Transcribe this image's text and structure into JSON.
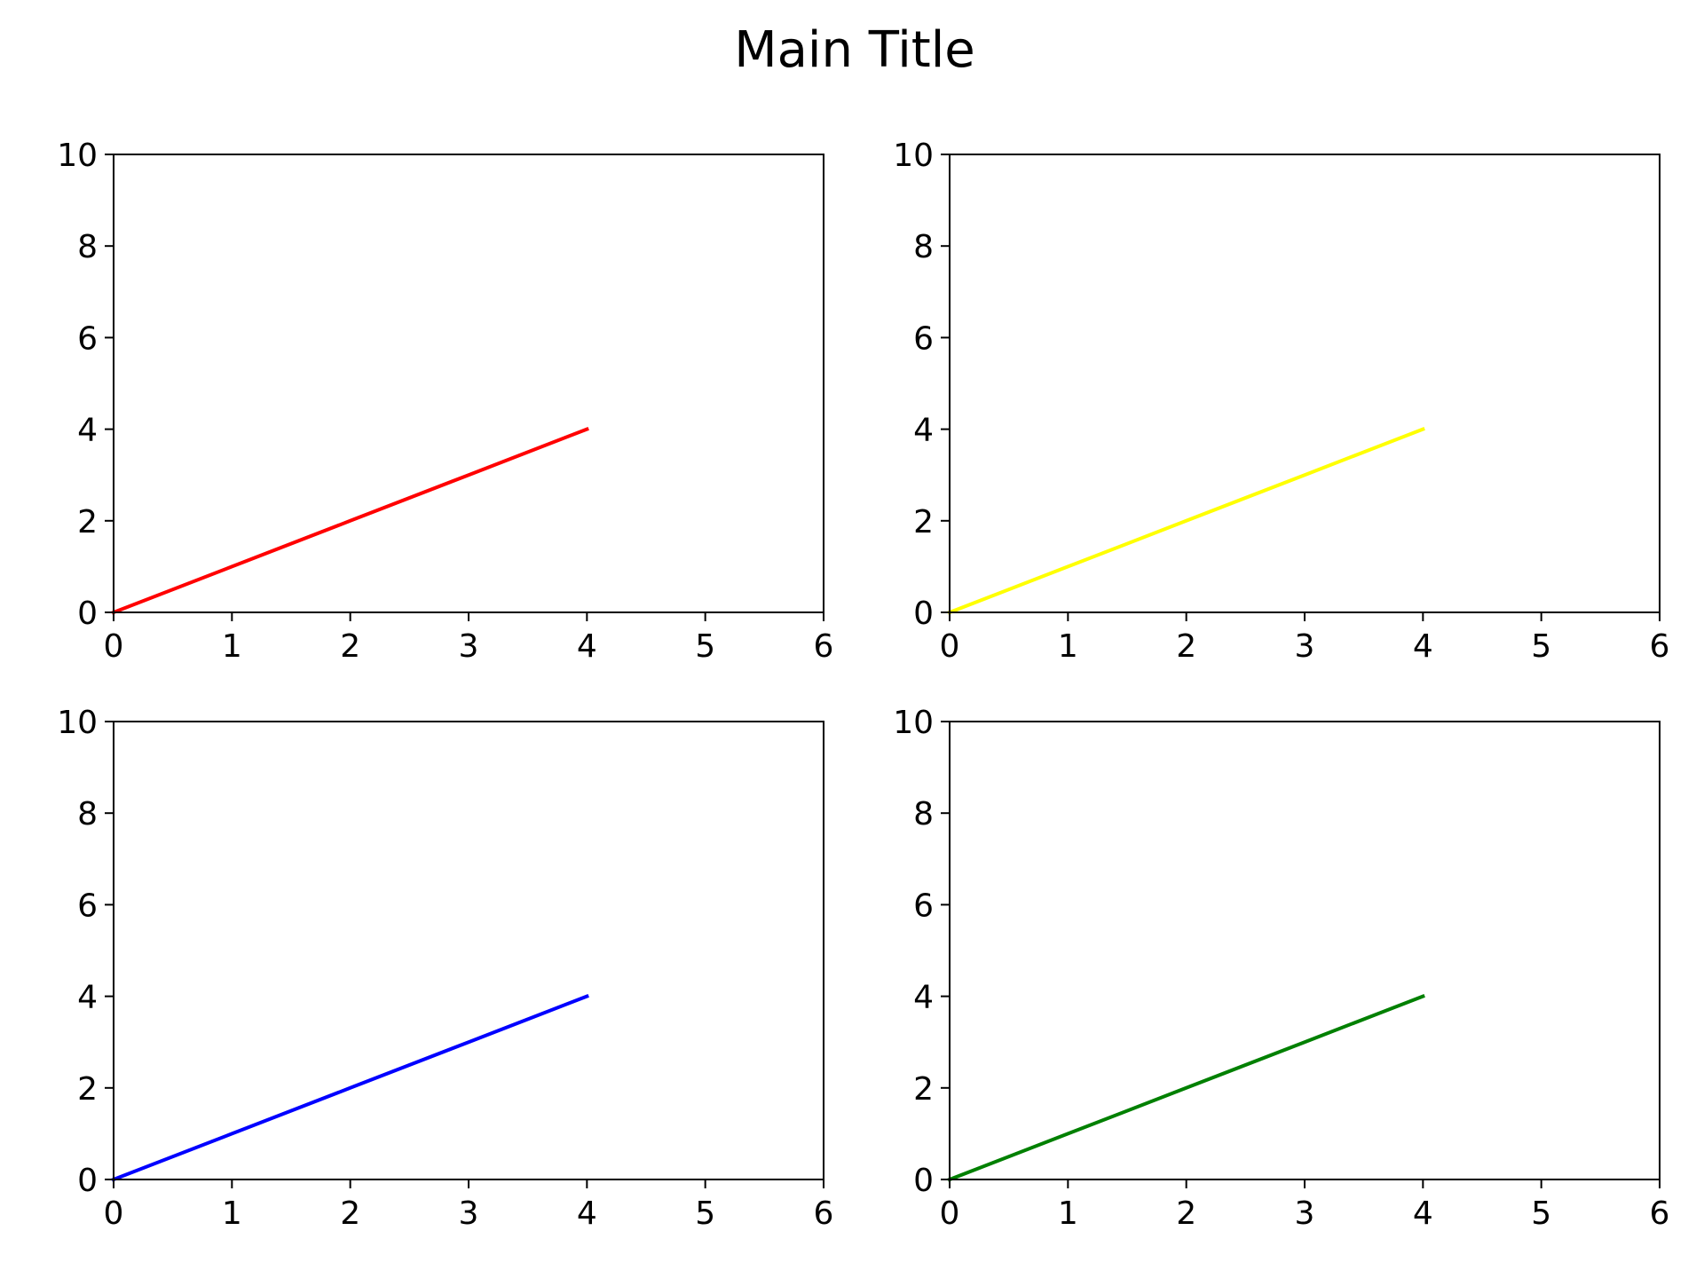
{
  "figure": {
    "suptitle": "Main Title"
  },
  "chart_data": [
    {
      "type": "line",
      "title": "",
      "xlabel": "",
      "ylabel": "",
      "xlim": [
        0,
        6
      ],
      "ylim": [
        0,
        10
      ],
      "xticks": [
        0,
        1,
        2,
        3,
        4,
        5,
        6
      ],
      "yticks": [
        0,
        2,
        4,
        6,
        8,
        10
      ],
      "grid": false,
      "series": [
        {
          "x": [
            0,
            1,
            2,
            3,
            4
          ],
          "y": [
            0,
            1,
            2,
            3,
            4
          ],
          "color": "#ff0000"
        }
      ]
    },
    {
      "type": "line",
      "title": "",
      "xlabel": "",
      "ylabel": "",
      "xlim": [
        0,
        6
      ],
      "ylim": [
        0,
        10
      ],
      "xticks": [
        0,
        1,
        2,
        3,
        4,
        5,
        6
      ],
      "yticks": [
        0,
        2,
        4,
        6,
        8,
        10
      ],
      "grid": false,
      "series": [
        {
          "x": [
            0,
            1,
            2,
            3,
            4
          ],
          "y": [
            0,
            1,
            2,
            3,
            4
          ],
          "color": "#ffff00"
        }
      ]
    },
    {
      "type": "line",
      "title": "",
      "xlabel": "",
      "ylabel": "",
      "xlim": [
        0,
        6
      ],
      "ylim": [
        0,
        10
      ],
      "xticks": [
        0,
        1,
        2,
        3,
        4,
        5,
        6
      ],
      "yticks": [
        0,
        2,
        4,
        6,
        8,
        10
      ],
      "grid": false,
      "series": [
        {
          "x": [
            0,
            1,
            2,
            3,
            4
          ],
          "y": [
            0,
            1,
            2,
            3,
            4
          ],
          "color": "#0000ff"
        }
      ]
    },
    {
      "type": "line",
      "title": "",
      "xlabel": "",
      "ylabel": "",
      "xlim": [
        0,
        6
      ],
      "ylim": [
        0,
        10
      ],
      "xticks": [
        0,
        1,
        2,
        3,
        4,
        5,
        6
      ],
      "yticks": [
        0,
        2,
        4,
        6,
        8,
        10
      ],
      "grid": false,
      "series": [
        {
          "x": [
            0,
            1,
            2,
            3,
            4
          ],
          "y": [
            0,
            1,
            2,
            3,
            4
          ],
          "color": "#008000"
        }
      ]
    }
  ]
}
